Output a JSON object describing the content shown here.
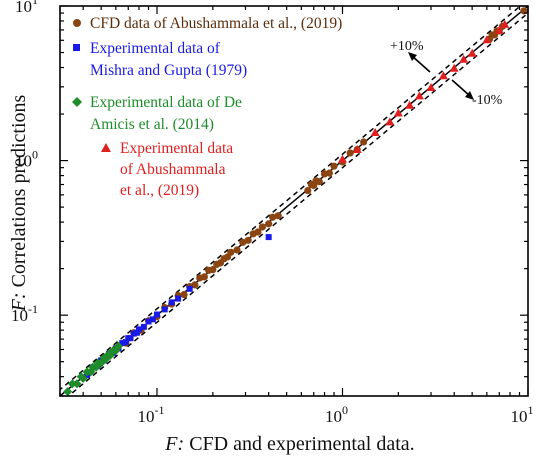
{
  "chart_data": {
    "type": "scatter",
    "title": "",
    "xlabel": "CFD and experimental data.",
    "xlabel_prefix": "F:",
    "ylabel": "Correlations predictions",
    "ylabel_prefix": "F:",
    "x_scale": "log",
    "y_scale": "log",
    "xlim": [
      0.03,
      10
    ],
    "ylim": [
      0.03,
      10
    ],
    "grid": false,
    "legend_position": "top-left",
    "x_ticks": [
      {
        "value": 0.1,
        "base": "10",
        "exp": "-1"
      },
      {
        "value": 1,
        "base": "10",
        "exp": "0"
      },
      {
        "value": 10,
        "base": "10",
        "exp": "1"
      }
    ],
    "y_ticks": [
      {
        "value": 0.1,
        "base": "10",
        "exp": "-1"
      },
      {
        "value": 1,
        "base": "10",
        "exp": "0"
      },
      {
        "value": 10,
        "base": "10",
        "exp": "1"
      }
    ],
    "reference_lines": [
      {
        "kind": "identity",
        "factor": 1.0,
        "color": "#000000",
        "dash": "solid"
      },
      {
        "kind": "upper",
        "factor": 1.1,
        "color": "#000000",
        "dash": "dashed"
      },
      {
        "kind": "lower",
        "factor": 0.9,
        "color": "#000000",
        "dash": "dashed"
      }
    ],
    "annotations": [
      {
        "text": "+10%",
        "at": [
          6.5,
          6.9
        ]
      },
      {
        "text": "-10%",
        "at": [
          4.4,
          3.4
        ]
      }
    ],
    "series": [
      {
        "name": "CFD data of Abushammala et al., (2019)",
        "color": "#8B4513",
        "marker": "circle",
        "x": [
          0.068,
          0.075,
          0.082,
          0.09,
          0.1,
          0.11,
          0.12,
          0.13,
          0.14,
          0.15,
          0.16,
          0.17,
          0.18,
          0.19,
          0.2,
          0.21,
          0.22,
          0.23,
          0.24,
          0.25,
          0.27,
          0.29,
          0.31,
          0.33,
          0.35,
          0.37,
          0.4,
          0.42,
          0.45,
          0.65,
          0.68,
          0.7,
          0.72,
          0.75,
          0.8,
          0.85,
          0.9,
          1.0,
          1.1,
          1.2,
          1.3,
          6.2,
          6.4,
          6.6,
          6.8,
          7.0,
          7.3,
          9.5
        ],
        "y": [
          0.066,
          0.077,
          0.08,
          0.092,
          0.098,
          0.112,
          0.118,
          0.134,
          0.136,
          0.153,
          0.157,
          0.174,
          0.177,
          0.195,
          0.197,
          0.213,
          0.218,
          0.232,
          0.238,
          0.255,
          0.264,
          0.296,
          0.305,
          0.336,
          0.345,
          0.372,
          0.39,
          0.43,
          0.44,
          0.64,
          0.7,
          0.69,
          0.74,
          0.73,
          0.82,
          0.83,
          0.92,
          0.98,
          1.12,
          1.18,
          1.32,
          6.1,
          6.5,
          6.5,
          6.9,
          6.9,
          7.4,
          9.3
        ]
      },
      {
        "name": "Experimental data of Mishra and Gupta (1979)",
        "color": "#1A1AE6",
        "marker": "square",
        "x": [
          0.042,
          0.045,
          0.048,
          0.05,
          0.052,
          0.055,
          0.058,
          0.06,
          0.062,
          0.065,
          0.068,
          0.07,
          0.072,
          0.075,
          0.078,
          0.08,
          0.085,
          0.09,
          0.095,
          0.1,
          0.11,
          0.12,
          0.13,
          0.15,
          0.4
        ],
        "y": [
          0.041,
          0.046,
          0.047,
          0.051,
          0.051,
          0.056,
          0.057,
          0.061,
          0.061,
          0.066,
          0.067,
          0.071,
          0.071,
          0.076,
          0.077,
          0.081,
          0.084,
          0.091,
          0.094,
          0.101,
          0.109,
          0.121,
          0.128,
          0.148,
          0.32
        ]
      },
      {
        "name": "Experimental data of De Amicis et al. (2014)",
        "color": "#1E8C2A",
        "marker": "diamond",
        "x": [
          0.033,
          0.035,
          0.037,
          0.039,
          0.04,
          0.042,
          0.044,
          0.045,
          0.047,
          0.048,
          0.05,
          0.052,
          0.053,
          0.055,
          0.056,
          0.058,
          0.06,
          0.062
        ],
        "y": [
          0.032,
          0.036,
          0.036,
          0.04,
          0.039,
          0.043,
          0.043,
          0.046,
          0.046,
          0.049,
          0.049,
          0.053,
          0.052,
          0.056,
          0.055,
          0.059,
          0.059,
          0.063
        ]
      },
      {
        "name": "Experimental data of Abushammala et al., (2019)",
        "color": "#E02020",
        "marker": "triangle",
        "x": [
          1.0,
          1.2,
          1.5,
          1.8,
          2.0,
          2.3,
          2.6,
          3.0,
          3.5,
          4.0,
          4.5,
          5.0,
          6.0,
          7.0,
          7.5
        ],
        "y": [
          1.02,
          1.18,
          1.52,
          1.78,
          2.03,
          2.28,
          2.62,
          2.97,
          3.54,
          3.96,
          4.52,
          4.95,
          6.05,
          6.95,
          7.6
        ]
      }
    ]
  }
}
